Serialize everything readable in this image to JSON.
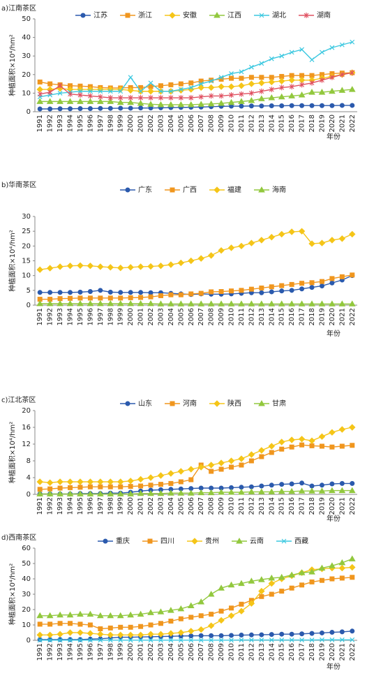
{
  "chart_data": [
    {
      "type": "line",
      "title": "a)江南茶区",
      "y_label": "种植面积×10⁴/hm²",
      "x_label": "年份",
      "categories": [
        "1991",
        "1992",
        "1993",
        "1994",
        "1995",
        "1996",
        "1997",
        "1998",
        "1999",
        "2000",
        "2001",
        "2002",
        "2003",
        "2004",
        "2005",
        "2006",
        "2007",
        "2008",
        "2009",
        "2010",
        "2011",
        "2012",
        "2013",
        "2014",
        "2015",
        "2016",
        "2017",
        "2018",
        "2019",
        "2020",
        "2021",
        "2022"
      ],
      "ylim": [
        0,
        50
      ],
      "yticks": [
        0,
        10,
        20,
        30,
        40,
        50
      ],
      "series": [
        {
          "name": "江苏",
          "color": "#2b5aad",
          "marker": "circle",
          "values": [
            1.5,
            1.5,
            1.6,
            1.6,
            1.7,
            1.7,
            1.8,
            1.8,
            1.9,
            1.9,
            2.0,
            2.0,
            2.1,
            2.2,
            2.3,
            2.4,
            2.5,
            2.7,
            2.9,
            3.0,
            3.0,
            3.1,
            3.1,
            3.2,
            3.2,
            3.3,
            3.3,
            3.3,
            3.3,
            3.3,
            3.4,
            3.4
          ]
        },
        {
          "name": "浙江",
          "color": "#f0961e",
          "marker": "square",
          "values": [
            16,
            15,
            14.5,
            14,
            13.8,
            13.5,
            13,
            12.8,
            12.8,
            13,
            13,
            13.5,
            14,
            14.5,
            15,
            15.5,
            16.5,
            17,
            17.5,
            18,
            18,
            18.5,
            18.5,
            18.5,
            19,
            19.5,
            19.5,
            19.5,
            20,
            20.5,
            20.8,
            21
          ]
        },
        {
          "name": "安徽",
          "color": "#f5c518",
          "marker": "diamond",
          "values": [
            12,
            12,
            12.5,
            12,
            12,
            12,
            12,
            12,
            12,
            11.5,
            11,
            11,
            11,
            11,
            11.5,
            12,
            13,
            13,
            13.5,
            13.5,
            14,
            15,
            15.5,
            16,
            16.5,
            17,
            17,
            17,
            18,
            19,
            20,
            21
          ]
        },
        {
          "name": "江西",
          "color": "#92c83e",
          "marker": "triangle",
          "values": [
            5.5,
            5.5,
            5.5,
            5.5,
            5.5,
            5.5,
            5.5,
            5.5,
            5,
            5,
            4.5,
            4,
            3.8,
            3.8,
            3.8,
            3.8,
            4,
            4.2,
            4.5,
            5,
            5.5,
            6,
            7,
            7.5,
            8,
            8.5,
            9,
            10.5,
            10.5,
            11,
            11.5,
            12
          ]
        },
        {
          "name": "湖北",
          "color": "#3cc8e0",
          "marker": "x",
          "values": [
            8,
            9,
            10,
            10.5,
            11,
            11,
            11,
            11,
            11,
            18.5,
            11,
            15.5,
            11,
            11,
            12,
            13,
            15,
            16.5,
            18.5,
            20.5,
            21.5,
            24,
            26,
            28.5,
            30,
            32,
            33.5,
            28,
            32,
            34.5,
            36,
            37.5
          ]
        },
        {
          "name": "湖南",
          "color": "#e05060",
          "marker": "star",
          "values": [
            9.5,
            10.5,
            14,
            9.5,
            9,
            8.5,
            8,
            7.5,
            7.5,
            7.5,
            7.5,
            7.5,
            7.5,
            7.5,
            7.5,
            7.5,
            8,
            8.5,
            8.5,
            9,
            9.5,
            10,
            11,
            12,
            13,
            13.5,
            14.5,
            15.5,
            17,
            18.5,
            20,
            21
          ]
        }
      ]
    },
    {
      "type": "line",
      "title": "b)华南茶区",
      "y_label": "种植面积×10⁴/hm²",
      "x_label": "年份",
      "categories": [
        "1991",
        "1992",
        "1993",
        "1994",
        "1995",
        "1996",
        "1997",
        "1998",
        "1999",
        "2000",
        "2001",
        "2002",
        "2003",
        "2004",
        "2005",
        "2006",
        "2007",
        "2008",
        "2009",
        "2010",
        "2011",
        "2012",
        "2013",
        "2014",
        "2015",
        "2016",
        "2017",
        "2018",
        "2019",
        "2020",
        "2021",
        "2022"
      ],
      "ylim": [
        0,
        30
      ],
      "yticks": [
        0,
        5,
        10,
        15,
        20,
        25,
        30
      ],
      "series": [
        {
          "name": "广东",
          "color": "#2b5aad",
          "marker": "circle",
          "values": [
            4.3,
            4.3,
            4.3,
            4.3,
            4.4,
            4.6,
            5,
            4.4,
            4.3,
            4.3,
            4.3,
            4.2,
            4.2,
            4,
            3.8,
            3.6,
            3.8,
            3.7,
            3.7,
            3.8,
            4,
            4.2,
            4.2,
            4.5,
            4.8,
            5,
            5.5,
            6,
            6.5,
            7.5,
            8.5,
            10
          ]
        },
        {
          "name": "广西",
          "color": "#f0961e",
          "marker": "square",
          "values": [
            2,
            2,
            2.2,
            2.3,
            2.4,
            2.4,
            2.4,
            2.4,
            2.4,
            2.5,
            2.6,
            2.8,
            3.2,
            3.5,
            3.5,
            3.8,
            4,
            4.5,
            4.6,
            4.8,
            5,
            5.4,
            5.8,
            6.2,
            6.6,
            7,
            7.4,
            7.6,
            8,
            9,
            9.6,
            10.2
          ]
        },
        {
          "name": "福建",
          "color": "#f5c518",
          "marker": "diamond",
          "values": [
            12,
            12.5,
            13,
            13.3,
            13.4,
            13.3,
            13,
            12.8,
            12.6,
            12.8,
            13,
            13.1,
            13.3,
            13.7,
            14.3,
            15,
            15.8,
            16.8,
            18.5,
            19.4,
            20,
            21,
            22,
            23,
            24,
            24.8,
            25,
            20.8,
            21,
            22,
            22.5,
            24
          ]
        },
        {
          "name": "海南",
          "color": "#92c83e",
          "marker": "triangle",
          "values": [
            0.5,
            0.5,
            0.5,
            0.5,
            0.5,
            0.5,
            0.5,
            0.5,
            0.5,
            0.5,
            0.5,
            0.5,
            0.4,
            0.4,
            0.4,
            0.4,
            0.4,
            0.4,
            0.4,
            0.4,
            0.4,
            0.4,
            0.4,
            0.4,
            0.4,
            0.4,
            0.4,
            0.4,
            0.4,
            0.4,
            0.4,
            0.4
          ]
        }
      ]
    },
    {
      "type": "line",
      "title": "c)江北茶区",
      "y_label": "种植面积×10⁴/hm²",
      "x_label": "年份",
      "categories": [
        "1991",
        "1992",
        "1993",
        "1994",
        "1995",
        "1996",
        "1997",
        "1998",
        "1999",
        "2000",
        "2001",
        "2002",
        "2003",
        "2004",
        "2005",
        "2006",
        "2007",
        "2008",
        "2009",
        "2010",
        "2011",
        "2012",
        "2013",
        "2014",
        "2015",
        "2016",
        "2017",
        "2018",
        "2019",
        "2020",
        "2021",
        "2022"
      ],
      "ylim": [
        0,
        20
      ],
      "yticks": [
        0,
        4,
        8,
        12,
        16,
        20
      ],
      "series": [
        {
          "name": "山东",
          "color": "#2b5aad",
          "marker": "circle",
          "values": [
            0.1,
            0.1,
            0.1,
            0.1,
            0.2,
            0.2,
            0.2,
            0.3,
            0.3,
            0.5,
            0.8,
            1,
            1.1,
            1.2,
            1.3,
            1.4,
            1.5,
            1.5,
            1.5,
            1.6,
            1.7,
            1.8,
            2,
            2.2,
            2.4,
            2.5,
            2.7,
            2,
            2.2,
            2.5,
            2.6,
            2.6
          ]
        },
        {
          "name": "河南",
          "color": "#f0961e",
          "marker": "square",
          "values": [
            1.2,
            1.3,
            1.5,
            1.6,
            1.7,
            1.8,
            1.8,
            1.8,
            1.8,
            1.9,
            2,
            2.2,
            2.4,
            2.6,
            3,
            3.5,
            7,
            5.5,
            6,
            6.5,
            7,
            8,
            9,
            10,
            10.8,
            11.3,
            11.8,
            11.6,
            11.5,
            11.3,
            11.5,
            11.7
          ]
        },
        {
          "name": "陕西",
          "color": "#f5c518",
          "marker": "diamond",
          "values": [
            3,
            2.8,
            3,
            3,
            3,
            3,
            3,
            3,
            3,
            3.2,
            3.6,
            4,
            4.5,
            5,
            5.5,
            6,
            6.5,
            7,
            7.5,
            8,
            8.5,
            9.5,
            10.5,
            11.5,
            12.5,
            13,
            13.2,
            12.8,
            13.8,
            14.8,
            15.5,
            16
          ]
        },
        {
          "name": "甘肃",
          "color": "#92c83e",
          "marker": "triangle",
          "values": [
            0.1,
            0.1,
            0.1,
            0.1,
            0.1,
            0.1,
            0.1,
            0.1,
            0.1,
            0.1,
            0.2,
            0.2,
            0.2,
            0.3,
            0.3,
            0.3,
            0.4,
            0.4,
            0.5,
            0.5,
            0.5,
            0.6,
            0.6,
            0.6,
            0.7,
            0.7,
            0.8,
            0.8,
            0.8,
            0.9,
            0.9,
            0.9
          ]
        }
      ]
    },
    {
      "type": "line",
      "title": "d)西南茶区",
      "y_label": "种植面积×10⁴/hm²",
      "x_label": "年份",
      "categories": [
        "1991",
        "1992",
        "1993",
        "1994",
        "1995",
        "1996",
        "1997",
        "1998",
        "1999",
        "2000",
        "2001",
        "2002",
        "2003",
        "2004",
        "2005",
        "2006",
        "2007",
        "2008",
        "2009",
        "2010",
        "2011",
        "2012",
        "2013",
        "2014",
        "2015",
        "2016",
        "2017",
        "2018",
        "2019",
        "2020",
        "2021",
        "2022"
      ],
      "ylim": [
        0,
        60
      ],
      "yticks": [
        0,
        10,
        20,
        30,
        40,
        50,
        60
      ],
      "series": [
        {
          "name": "重庆",
          "color": "#2b5aad",
          "marker": "circle",
          "values": [
            0.5,
            0.5,
            0.5,
            0.5,
            0.5,
            0.8,
            1,
            1.5,
            2,
            2,
            2.2,
            2.3,
            2.5,
            2.6,
            2.8,
            2.9,
            3,
            3,
            3,
            3.2,
            3.4,
            3.5,
            3.6,
            3.8,
            4,
            4,
            4.2,
            4.5,
            4.8,
            5.2,
            5.5,
            6
          ]
        },
        {
          "name": "四川",
          "color": "#f0961e",
          "marker": "square",
          "values": [
            10.5,
            10.5,
            11,
            11,
            10.5,
            10,
            7.5,
            8,
            8.5,
            8.5,
            9,
            10,
            11,
            12.5,
            14,
            15,
            16,
            17,
            19,
            21,
            23.5,
            26,
            28.5,
            30,
            32,
            34,
            36,
            38,
            39,
            40,
            40.5,
            41
          ]
        },
        {
          "name": "贵州",
          "color": "#f5c518",
          "marker": "diamond",
          "values": [
            3.5,
            3.5,
            4,
            5,
            5,
            4.5,
            4,
            3.5,
            3.5,
            3.5,
            3.5,
            4,
            4,
            4.5,
            5,
            6,
            7,
            9.5,
            13,
            16,
            19,
            24,
            32,
            37,
            40,
            42,
            44,
            46,
            46.5,
            47,
            47,
            47.5
          ]
        },
        {
          "name": "云南",
          "color": "#92c83e",
          "marker": "triangle",
          "values": [
            16,
            16,
            16.5,
            16.5,
            17,
            17,
            16,
            16,
            16,
            16.5,
            17,
            18,
            18.5,
            19.5,
            20.5,
            22.5,
            25,
            30,
            34,
            36,
            37,
            38.5,
            39.5,
            40.5,
            41,
            42.5,
            44,
            44.5,
            47,
            48.5,
            50.5,
            53
          ]
        },
        {
          "name": "西藏",
          "color": "#3cc8e0",
          "marker": "x",
          "values": [
            0.1,
            0.1,
            0.1,
            0.1,
            0.1,
            0.1,
            0.1,
            0.1,
            0.1,
            0.1,
            0.1,
            0.1,
            0.1,
            0.1,
            0.1,
            0.1,
            0.1,
            0.1,
            0.1,
            0.1,
            0.2,
            0.2,
            0.2,
            0.2,
            0.2,
            0.2,
            0.2,
            0.2,
            0.3,
            0.3,
            0.3,
            0.3
          ]
        }
      ]
    }
  ]
}
